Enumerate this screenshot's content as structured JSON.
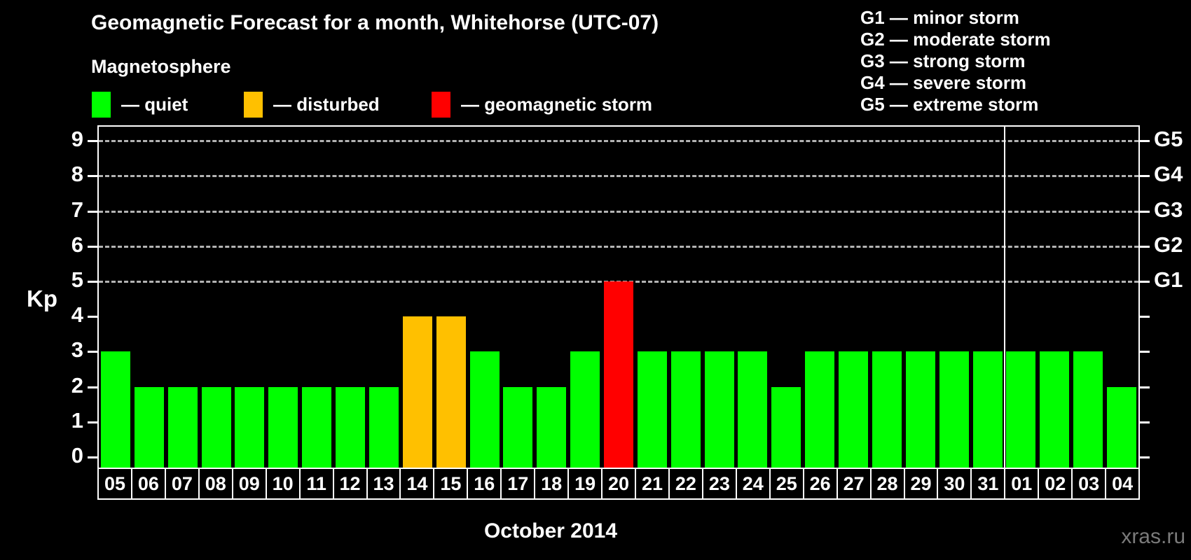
{
  "header": {
    "title": "Geomagnetic Forecast for a month, Whitehorse (UTC-07)",
    "subtitle": "Magnetosphere"
  },
  "legend": {
    "items": [
      {
        "status": "quiet",
        "label": "— quiet",
        "color": "#00ff00"
      },
      {
        "status": "disturbed",
        "label": "— disturbed",
        "color": "#ffc000"
      },
      {
        "status": "storm",
        "label": "— geomagnetic storm",
        "color": "#ff0000"
      }
    ]
  },
  "g_scale_legend": [
    "G1 — minor storm",
    "G2 — moderate storm",
    "G3 — strong storm",
    "G4 — severe storm",
    "G5 — extreme storm"
  ],
  "watermark": "xras.ru",
  "chart_data": {
    "type": "bar",
    "title": "Geomagnetic Forecast for a month, Whitehorse (UTC-07)",
    "xlabel": "October 2014",
    "ylabel": "Kp",
    "ylim": [
      0,
      9
    ],
    "yticks": [
      0,
      1,
      2,
      3,
      4,
      5,
      6,
      7,
      8,
      9
    ],
    "gridlines_kp": [
      5,
      6,
      7,
      8,
      9
    ],
    "grid_style": "dashed",
    "legend_position": "top",
    "right_axis_labels": [
      {
        "label": "G1",
        "kp": 5
      },
      {
        "label": "G2",
        "kp": 6
      },
      {
        "label": "G3",
        "kp": 7
      },
      {
        "label": "G4",
        "kp": 8
      },
      {
        "label": "G5",
        "kp": 9
      }
    ],
    "categories": [
      "05",
      "06",
      "07",
      "08",
      "09",
      "10",
      "11",
      "12",
      "13",
      "14",
      "15",
      "16",
      "17",
      "18",
      "19",
      "20",
      "21",
      "22",
      "23",
      "24",
      "25",
      "26",
      "27",
      "28",
      "29",
      "30",
      "31",
      "01",
      "02",
      "03",
      "04"
    ],
    "values": [
      3,
      2,
      2,
      2,
      2,
      2,
      2,
      2,
      2,
      4,
      4,
      3,
      2,
      2,
      3,
      5,
      3,
      3,
      3,
      3,
      2,
      3,
      3,
      3,
      3,
      3,
      3,
      3,
      3,
      3,
      2
    ],
    "statuses": [
      "quiet",
      "quiet",
      "quiet",
      "quiet",
      "quiet",
      "quiet",
      "quiet",
      "quiet",
      "quiet",
      "disturbed",
      "disturbed",
      "quiet",
      "quiet",
      "quiet",
      "quiet",
      "storm",
      "quiet",
      "quiet",
      "quiet",
      "quiet",
      "quiet",
      "quiet",
      "quiet",
      "quiet",
      "quiet",
      "quiet",
      "quiet",
      "quiet",
      "quiet",
      "quiet",
      "quiet"
    ],
    "bar_colors": {
      "quiet": "#00ff00",
      "disturbed": "#ffc000",
      "storm": "#ff0000"
    },
    "month_separator_after_index": 26,
    "month_label": "October 2014"
  }
}
